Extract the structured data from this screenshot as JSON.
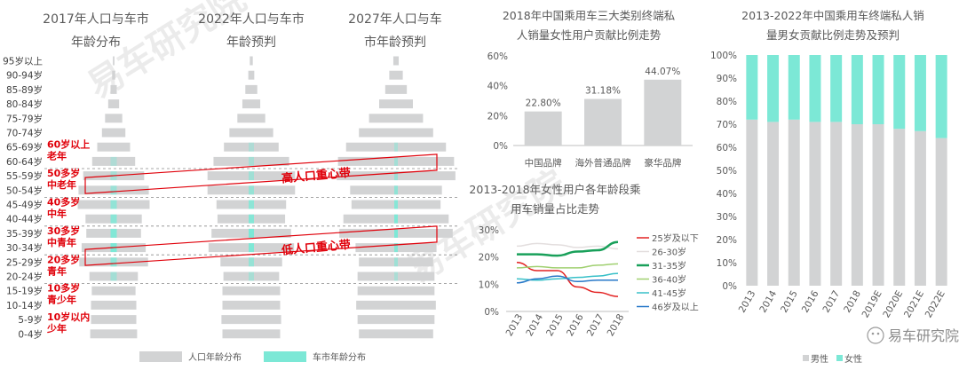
{
  "pyramid": {
    "titles": [
      "2017年人口与车市\n年龄分布",
      "2022年人口与车市\n年龄预判",
      "2027年人口与车\n市年龄预判"
    ],
    "age_groups": [
      "95岁以上",
      "90-94岁",
      "85-89岁",
      "80-84岁",
      "75-79岁",
      "70-74岁",
      "65-69岁",
      "60-64岁",
      "55-59岁",
      "50-54岁",
      "45-49岁",
      "40-44岁",
      "35-39岁",
      "30-34岁",
      "25-29岁",
      "20-24岁",
      "15-19岁",
      "10-14岁",
      "5-9岁",
      "0-4岁"
    ],
    "stage_labels": [
      {
        "text": "60岁以上\n老年",
        "group": 6
      },
      {
        "text": "50多岁\n中老年",
        "group": 8
      },
      {
        "text": "40多岁\n中年",
        "group": 10
      },
      {
        "text": "30多岁\n中青年",
        "group": 12
      },
      {
        "text": "20多岁\n青年",
        "group": 14
      },
      {
        "text": "10多岁\n青少年",
        "group": 16
      },
      {
        "text": "10岁以内\n少年",
        "group": 18
      }
    ],
    "bands": [
      {
        "label": "高人口重心带",
        "from_group": 7,
        "to_group": 9
      },
      {
        "label": "低人口重心带",
        "from_group": 12,
        "to_group": 14
      }
    ],
    "legend": {
      "population": "人口年龄分布",
      "car_market": "车市年龄分布"
    },
    "colors": {
      "population": "#d2d3d4",
      "car_market": "#7ce8d6",
      "highlight": "#e0000a"
    }
  },
  "chart_data": [
    {
      "type": "bar",
      "title": "2018年中国乘用车三大类别终端私\n人销量女性用户贡献比例走势",
      "categories": [
        "中国品牌",
        "海外普通品牌",
        "豪华品牌"
      ],
      "values": [
        22.8,
        31.18,
        44.07
      ],
      "value_labels": [
        "22.80%",
        "31.18%",
        "44.07%"
      ],
      "ylim": [
        0,
        60
      ],
      "yticks": [
        "0%",
        "20%",
        "40%",
        "60%"
      ]
    },
    {
      "type": "line",
      "title": "2013-2018年女性用户各年龄段乘\n用车销量占比走势",
      "x": [
        "2013",
        "2014",
        "2015",
        "2016",
        "2017",
        "2018"
      ],
      "ylim": [
        0,
        30
      ],
      "yticks": [
        "0%",
        "10%",
        "20%",
        "30%"
      ],
      "series": [
        {
          "name": "25岁及以下",
          "values": [
            18,
            15,
            15,
            9,
            7,
            5.5
          ],
          "color": "#e32222"
        },
        {
          "name": "26-30岁",
          "values": [
            24,
            25,
            24.5,
            23.5,
            24,
            23
          ],
          "color": "#e3dede"
        },
        {
          "name": "31-35岁",
          "values": [
            21,
            21,
            20.5,
            22,
            22.5,
            25.5
          ],
          "color": "#19a05a"
        },
        {
          "name": "36-40岁",
          "values": [
            16,
            16.5,
            16,
            16,
            17,
            17.5
          ],
          "color": "#a0d070"
        },
        {
          "name": "41-45岁",
          "values": [
            12,
            11.5,
            12,
            12.5,
            13,
            14
          ],
          "color": "#38c0c8"
        },
        {
          "name": "46岁及以上",
          "values": [
            10.5,
            12,
            13,
            11,
            11.5,
            11.5
          ],
          "color": "#2878c8"
        }
      ]
    },
    {
      "type": "bar",
      "title": "2013-2022年中国乘用车终端私人销\n量男女贡献比例走势及预判",
      "categories": [
        "2013",
        "2014",
        "2015",
        "2016",
        "2017",
        "2018",
        "2019E",
        "2020E",
        "2021E",
        "2022E"
      ],
      "ylim": [
        0,
        100
      ],
      "yticks": [
        "0%",
        "10%",
        "20%",
        "30%",
        "40%",
        "50%",
        "60%",
        "70%",
        "80%",
        "90%",
        "100%"
      ],
      "series": [
        {
          "name": "男性",
          "values": [
            72,
            71,
            72,
            71,
            71,
            70,
            70,
            68,
            67,
            64
          ],
          "color": "#d2d3d4"
        },
        {
          "name": "女性",
          "values": [
            28,
            29,
            28,
            29,
            29,
            30,
            30,
            32,
            33,
            36
          ],
          "color": "#7ce8d6"
        }
      ]
    }
  ],
  "watermark": [
    "易车研究院",
    "易车研究院"
  ],
  "wechat_label": "易车研究院"
}
